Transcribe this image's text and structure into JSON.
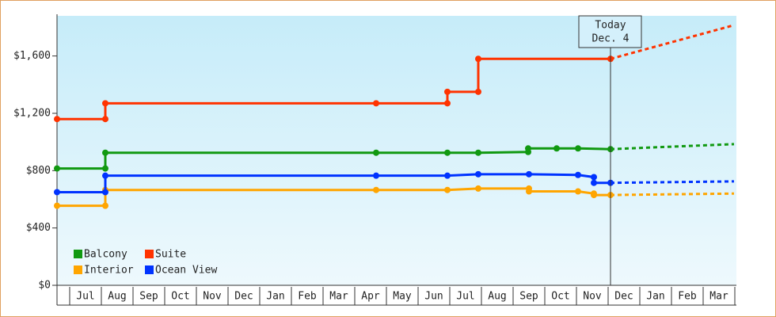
{
  "chart_data": {
    "type": "line",
    "step": true,
    "xlim": [
      -0.4,
      21.05
    ],
    "ylim": [
      0,
      1880
    ],
    "yticks": [
      {
        "value": 0,
        "label": "$0"
      },
      {
        "value": 400,
        "label": "$400"
      },
      {
        "value": 800,
        "label": "$800"
      },
      {
        "value": 1200,
        "label": "$1,200"
      },
      {
        "value": 1600,
        "label": "$1,600"
      }
    ],
    "xticks": [
      {
        "value": 0.5,
        "label": "Jul"
      },
      {
        "value": 1.5,
        "label": "Aug"
      },
      {
        "value": 2.5,
        "label": "Sep"
      },
      {
        "value": 3.5,
        "label": "Oct"
      },
      {
        "value": 4.5,
        "label": "Nov"
      },
      {
        "value": 5.5,
        "label": "Dec"
      },
      {
        "value": 6.5,
        "label": "Jan"
      },
      {
        "value": 7.5,
        "label": "Feb"
      },
      {
        "value": 8.5,
        "label": "Mar"
      },
      {
        "value": 9.5,
        "label": "Apr"
      },
      {
        "value": 10.5,
        "label": "May"
      },
      {
        "value": 11.5,
        "label": "Jun"
      },
      {
        "value": 12.5,
        "label": "Jul"
      },
      {
        "value": 13.5,
        "label": "Aug"
      },
      {
        "value": 14.5,
        "label": "Sep"
      },
      {
        "value": 15.5,
        "label": "Oct"
      },
      {
        "value": 16.5,
        "label": "Nov"
      },
      {
        "value": 17.5,
        "label": "Dec"
      },
      {
        "value": 18.5,
        "label": "Jan"
      },
      {
        "value": 19.5,
        "label": "Feb"
      },
      {
        "value": 20.5,
        "label": "Mar"
      }
    ],
    "today": {
      "x": 17.075,
      "label": "Today",
      "date": "Dec. 4"
    },
    "legend": "lower left",
    "series": [
      {
        "name": "Balcony",
        "color": "#119911",
        "x": [
          -0.4,
          1.125,
          1.125,
          9.675,
          11.925,
          12.9,
          14.475,
          14.475,
          15.375,
          16.05,
          17.075
        ],
        "values": [
          815,
          815,
          925,
          925,
          925,
          925,
          930,
          955,
          955,
          955,
          950
        ],
        "forecast_x": [
          17.075,
          20.975
        ],
        "forecast_values": [
          950,
          985
        ]
      },
      {
        "name": "Suite",
        "color": "#ff3300",
        "x": [
          -0.4,
          1.125,
          1.125,
          9.675,
          11.925,
          11.925,
          12.9,
          12.9,
          17.075
        ],
        "values": [
          1160,
          1160,
          1270,
          1270,
          1270,
          1350,
          1350,
          1580,
          1580
        ],
        "forecast_x": [
          17.075,
          20.975
        ],
        "forecast_values": [
          1580,
          1815
        ]
      },
      {
        "name": "Interior",
        "color": "#ffa500",
        "x": [
          -0.4,
          1.125,
          1.125,
          9.675,
          11.925,
          12.9,
          14.5,
          14.5,
          16.05,
          16.55,
          16.55,
          17.075
        ],
        "values": [
          555,
          555,
          665,
          665,
          665,
          675,
          675,
          655,
          655,
          640,
          630,
          630
        ],
        "forecast_x": [
          17.075,
          20.975
        ],
        "forecast_values": [
          630,
          640
        ]
      },
      {
        "name": "Ocean View",
        "color": "#0033ff",
        "x": [
          -0.4,
          1.125,
          1.125,
          9.675,
          11.925,
          12.9,
          14.5,
          16.05,
          16.55,
          16.55,
          17.075
        ],
        "values": [
          650,
          650,
          765,
          765,
          765,
          775,
          775,
          770,
          755,
          715,
          715
        ],
        "forecast_x": [
          17.075,
          20.975
        ],
        "forecast_values": [
          715,
          725
        ]
      }
    ]
  }
}
